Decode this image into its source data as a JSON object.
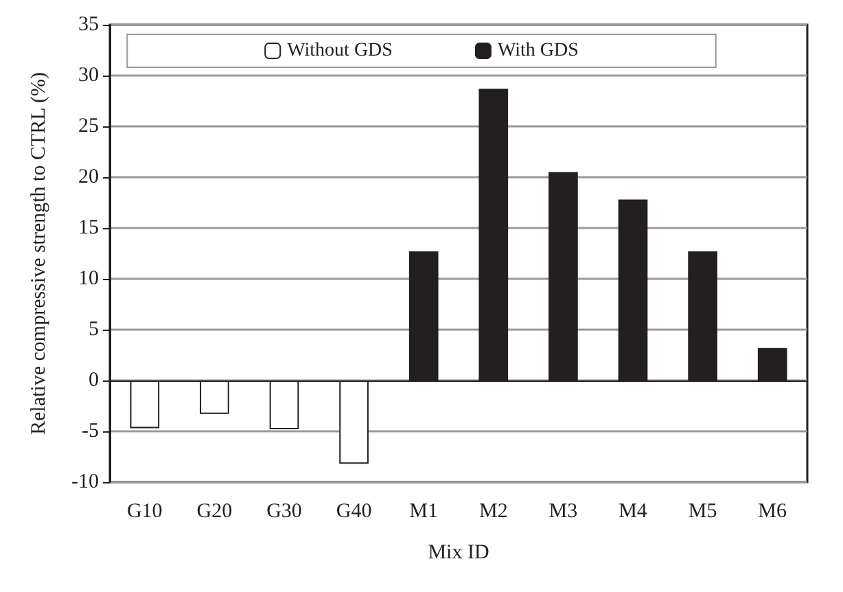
{
  "chart_data": {
    "type": "bar",
    "xlabel": "Mix ID",
    "ylabel": "Relative compressive strength to CTRL (%)",
    "categories": [
      "G10",
      "G20",
      "G30",
      "G40",
      "M1",
      "M2",
      "M3",
      "M4",
      "M5",
      "M6"
    ],
    "series": [
      {
        "name": "Without GDS",
        "color": "#ffffff",
        "values": [
          -4.7,
          -3.3,
          -4.8,
          -8.2,
          null,
          null,
          null,
          null,
          null,
          null
        ]
      },
      {
        "name": "With GDS",
        "color": "#231f20",
        "values": [
          null,
          null,
          null,
          null,
          12.7,
          28.7,
          20.5,
          17.8,
          12.7,
          3.2
        ]
      }
    ],
    "ylim": [
      -10,
      35
    ],
    "yticks": [
      -10,
      -5,
      0,
      5,
      10,
      15,
      20,
      25,
      30,
      35
    ],
    "grid": "y",
    "legend": "top"
  }
}
